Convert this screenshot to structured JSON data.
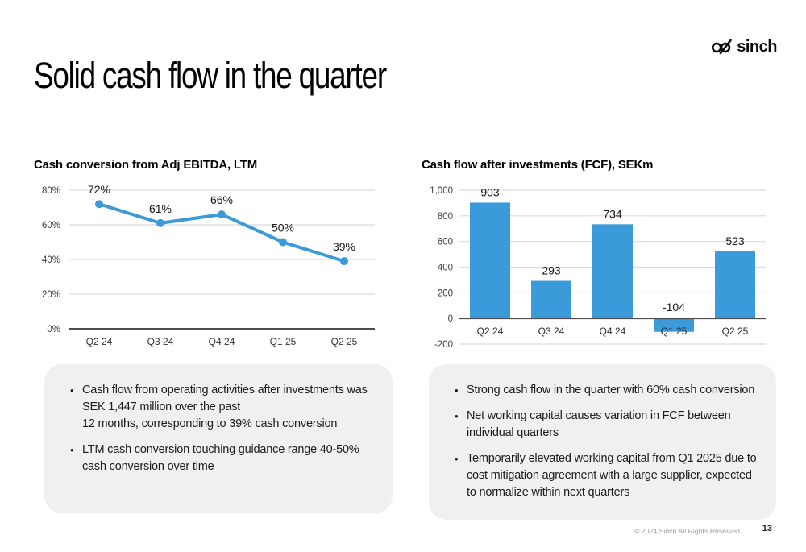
{
  "header": {
    "title": "Solid cash flow in the quarter",
    "logo_text": "sinch"
  },
  "footer": {
    "copyright": "© 2024 Sinch All Rights Reserved",
    "page_number": "13"
  },
  "colors": {
    "accent_blue": "#3B9BDA",
    "grid_line": "#DBDBDB",
    "axis_line": "#4D4D4D",
    "panel_bg": "#F0F0F0",
    "label_text": "#161616",
    "tick_text": "#3D3D3D"
  },
  "chart_data": [
    {
      "type": "line",
      "title": "Cash conversion from Adj EBITDA, LTM",
      "categories": [
        "Q2 24",
        "Q3 24",
        "Q4 24",
        "Q1 25",
        "Q2 25"
      ],
      "values": [
        72,
        61,
        66,
        50,
        39
      ],
      "data_labels": [
        "72%",
        "61%",
        "66%",
        "50%",
        "39%"
      ],
      "y_tick_values": [
        80,
        60,
        40,
        20,
        0
      ],
      "y_tick_labels": [
        "80%",
        "60%",
        "40%",
        "20%",
        "0%"
      ],
      "ylim": [
        0,
        80
      ],
      "grid": true,
      "legend": "none"
    },
    {
      "type": "bar",
      "title": "Cash flow after investments (FCF), SEKm",
      "categories": [
        "Q2 24",
        "Q3 24",
        "Q4 24",
        "Q1 25",
        "Q2 25"
      ],
      "values": [
        903,
        293,
        734,
        -104,
        523
      ],
      "data_labels": [
        "903",
        "293",
        "734",
        "-104",
        "523"
      ],
      "y_tick_values": [
        1000,
        800,
        600,
        400,
        200,
        0,
        -200
      ],
      "y_tick_labels": [
        "1,000",
        "800",
        "600",
        "400",
        "200",
        "0",
        "-200"
      ],
      "ylim": [
        -200,
        1000
      ],
      "grid": true,
      "legend": "none"
    }
  ],
  "panels": [
    {
      "bullets": [
        "Cash flow from operating activities after investments was SEK 1,447 million over the past\n12 months, corresponding to 39% cash conversion",
        "LTM cash conversion touching guidance range 40-50% cash conversion over time"
      ]
    },
    {
      "bullets": [
        "Strong cash flow in the quarter with 60% cash conversion",
        "Net working capital causes variation in FCF between individual quarters",
        "Temporarily elevated working capital from Q1 2025 due to cost mitigation agreement with a large supplier, expected to normalize within next quarters"
      ]
    }
  ]
}
